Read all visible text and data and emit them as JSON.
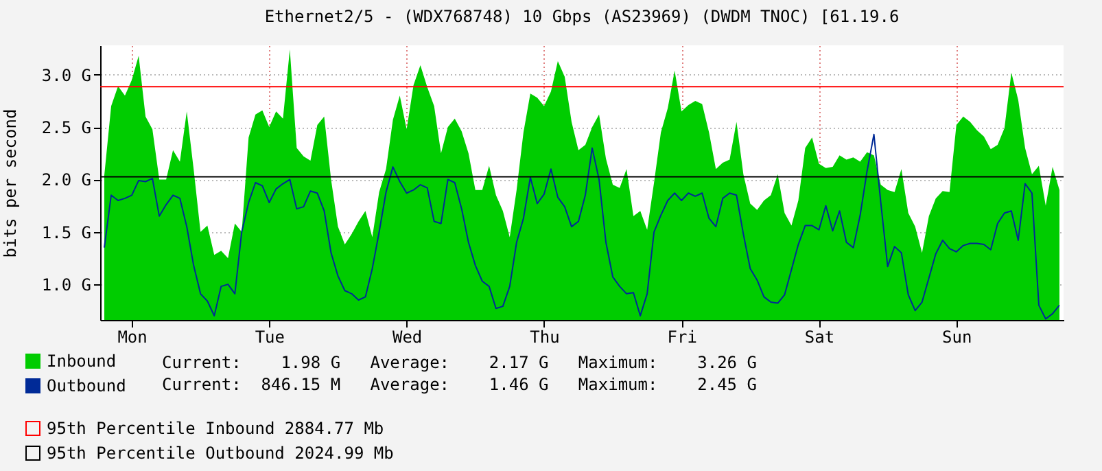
{
  "chart_data": {
    "type": "area",
    "title": "Ethernet2/5 - (WDX768748) 10 Gbps (AS23969) (DWDM TNOC) [61.19.6",
    "ylabel": "bits per second",
    "categories": [
      null,
      null,
      null,
      null,
      "Mon",
      null,
      null,
      null,
      null,
      null,
      null,
      null,
      null,
      null,
      null,
      null,
      null,
      null,
      null,
      null,
      null,
      null,
      null,
      null,
      "Tue",
      null,
      null,
      null,
      null,
      null,
      null,
      null,
      null,
      null,
      null,
      null,
      null,
      null,
      null,
      null,
      null,
      null,
      null,
      null,
      "Wed",
      null,
      null,
      null,
      null,
      null,
      null,
      null,
      null,
      null,
      null,
      null,
      null,
      null,
      null,
      null,
      null,
      null,
      null,
      null,
      "Thu",
      null,
      null,
      null,
      null,
      null,
      null,
      null,
      null,
      null,
      null,
      null,
      null,
      null,
      null,
      null,
      null,
      null,
      null,
      null,
      "Fri",
      null,
      null,
      null,
      null,
      null,
      null,
      null,
      null,
      null,
      null,
      null,
      null,
      null,
      null,
      null,
      null,
      null,
      null,
      null,
      "Sat",
      null,
      null,
      null,
      null,
      null,
      null,
      null,
      null,
      null,
      null,
      null,
      null,
      null,
      null,
      null,
      null,
      null,
      null,
      null,
      "Sun",
      null,
      null,
      null,
      null,
      null,
      null,
      null,
      null,
      null,
      null,
      null,
      null,
      null,
      null,
      null
    ],
    "ylim": [
      0.66,
      3.28
    ],
    "yticks": [
      {
        "value": 1.0,
        "label": "1.0 G"
      },
      {
        "value": 1.5,
        "label": "1.5 G"
      },
      {
        "value": 2.0,
        "label": "2.0 G"
      },
      {
        "value": 2.5,
        "label": "2.5 G"
      },
      {
        "value": 3.0,
        "label": "3.0 G"
      }
    ],
    "grid": true,
    "legend": "bottom left",
    "series": [
      {
        "name": "Inbound",
        "type": "area",
        "color": "#00cc00",
        "values": [
          2.04,
          2.7,
          2.89,
          2.8,
          2.95,
          3.18,
          2.6,
          2.48,
          2.0,
          2.0,
          2.28,
          2.17,
          2.65,
          2.1,
          1.5,
          1.56,
          1.28,
          1.32,
          1.25,
          1.58,
          1.5,
          2.4,
          2.62,
          2.66,
          2.5,
          2.65,
          2.58,
          3.24,
          2.3,
          2.22,
          2.18,
          2.52,
          2.6,
          2.0,
          1.55,
          1.38,
          1.48,
          1.6,
          1.7,
          1.45,
          1.88,
          2.1,
          2.57,
          2.8,
          2.48,
          2.9,
          3.09,
          2.88,
          2.7,
          2.25,
          2.5,
          2.58,
          2.46,
          2.25,
          1.9,
          1.9,
          2.13,
          1.85,
          1.7,
          1.45,
          1.9,
          2.45,
          2.82,
          2.78,
          2.7,
          2.84,
          3.13,
          2.98,
          2.55,
          2.28,
          2.33,
          2.5,
          2.62,
          2.2,
          1.95,
          1.92,
          2.1,
          1.65,
          1.7,
          1.52,
          1.97,
          2.45,
          2.68,
          3.04,
          2.65,
          2.71,
          2.75,
          2.72,
          2.45,
          2.1,
          2.16,
          2.19,
          2.55,
          2.05,
          1.77,
          1.71,
          1.8,
          1.85,
          2.05,
          1.68,
          1.56,
          1.8,
          2.3,
          2.4,
          2.15,
          2.11,
          2.12,
          2.23,
          2.19,
          2.21,
          2.17,
          2.26,
          2.23,
          1.95,
          1.9,
          1.88,
          2.1,
          1.68,
          1.55,
          1.3,
          1.65,
          1.82,
          1.89,
          1.88,
          2.52,
          2.6,
          2.55,
          2.47,
          2.41,
          2.29,
          2.33,
          2.49,
          3.02,
          2.76,
          2.3,
          2.05,
          2.13,
          1.75,
          2.12,
          1.9
        ]
      },
      {
        "name": "Outbound",
        "type": "line",
        "color": "#002a97",
        "values": [
          1.35,
          1.85,
          1.8,
          1.82,
          1.85,
          1.99,
          1.98,
          2.01,
          1.65,
          1.76,
          1.85,
          1.82,
          1.55,
          1.18,
          0.91,
          0.84,
          0.7,
          0.98,
          1.0,
          0.91,
          1.5,
          1.78,
          1.97,
          1.94,
          1.78,
          1.91,
          1.96,
          2.0,
          1.72,
          1.74,
          1.89,
          1.87,
          1.7,
          1.3,
          1.08,
          0.94,
          0.91,
          0.85,
          0.88,
          1.15,
          1.5,
          1.88,
          2.12,
          1.98,
          1.87,
          1.9,
          1.95,
          1.92,
          1.6,
          1.58,
          2.0,
          1.97,
          1.72,
          1.4,
          1.18,
          1.03,
          0.98,
          0.77,
          0.79,
          0.98,
          1.4,
          1.63,
          2.02,
          1.77,
          1.86,
          2.1,
          1.83,
          1.74,
          1.55,
          1.6,
          1.85,
          2.3,
          2.0,
          1.4,
          1.07,
          0.98,
          0.91,
          0.92,
          0.7,
          0.91,
          1.5,
          1.66,
          1.8,
          1.87,
          1.8,
          1.87,
          1.84,
          1.87,
          1.63,
          1.55,
          1.82,
          1.87,
          1.85,
          1.48,
          1.15,
          1.04,
          0.88,
          0.83,
          0.82,
          0.9,
          1.14,
          1.38,
          1.56,
          1.56,
          1.52,
          1.75,
          1.51,
          1.7,
          1.4,
          1.35,
          1.66,
          2.08,
          2.43,
          1.78,
          1.17,
          1.36,
          1.3,
          0.9,
          0.75,
          0.83,
          1.06,
          1.29,
          1.42,
          1.34,
          1.31,
          1.37,
          1.39,
          1.39,
          1.38,
          1.33,
          1.58,
          1.68,
          1.7,
          1.42,
          1.96,
          1.87,
          0.8,
          0.67,
          0.72,
          0.8
        ]
      }
    ],
    "ref_lines": [
      {
        "axis": "y",
        "value": 2.88477,
        "label": "95th Percentile Inbound  2884.77 Mb",
        "color": "#ff0000"
      },
      {
        "axis": "y",
        "value": 2.02499,
        "label": "95th Percentile Outbound  2024.99 Mb",
        "color": "#000000"
      }
    ],
    "annotations": [
      "Current:    1.98 G   Average:    2.17 G   Maximum:    3.26 G",
      "Current:  846.15 M   Average:    1.46 G   Maximum:    2.45 G"
    ]
  }
}
